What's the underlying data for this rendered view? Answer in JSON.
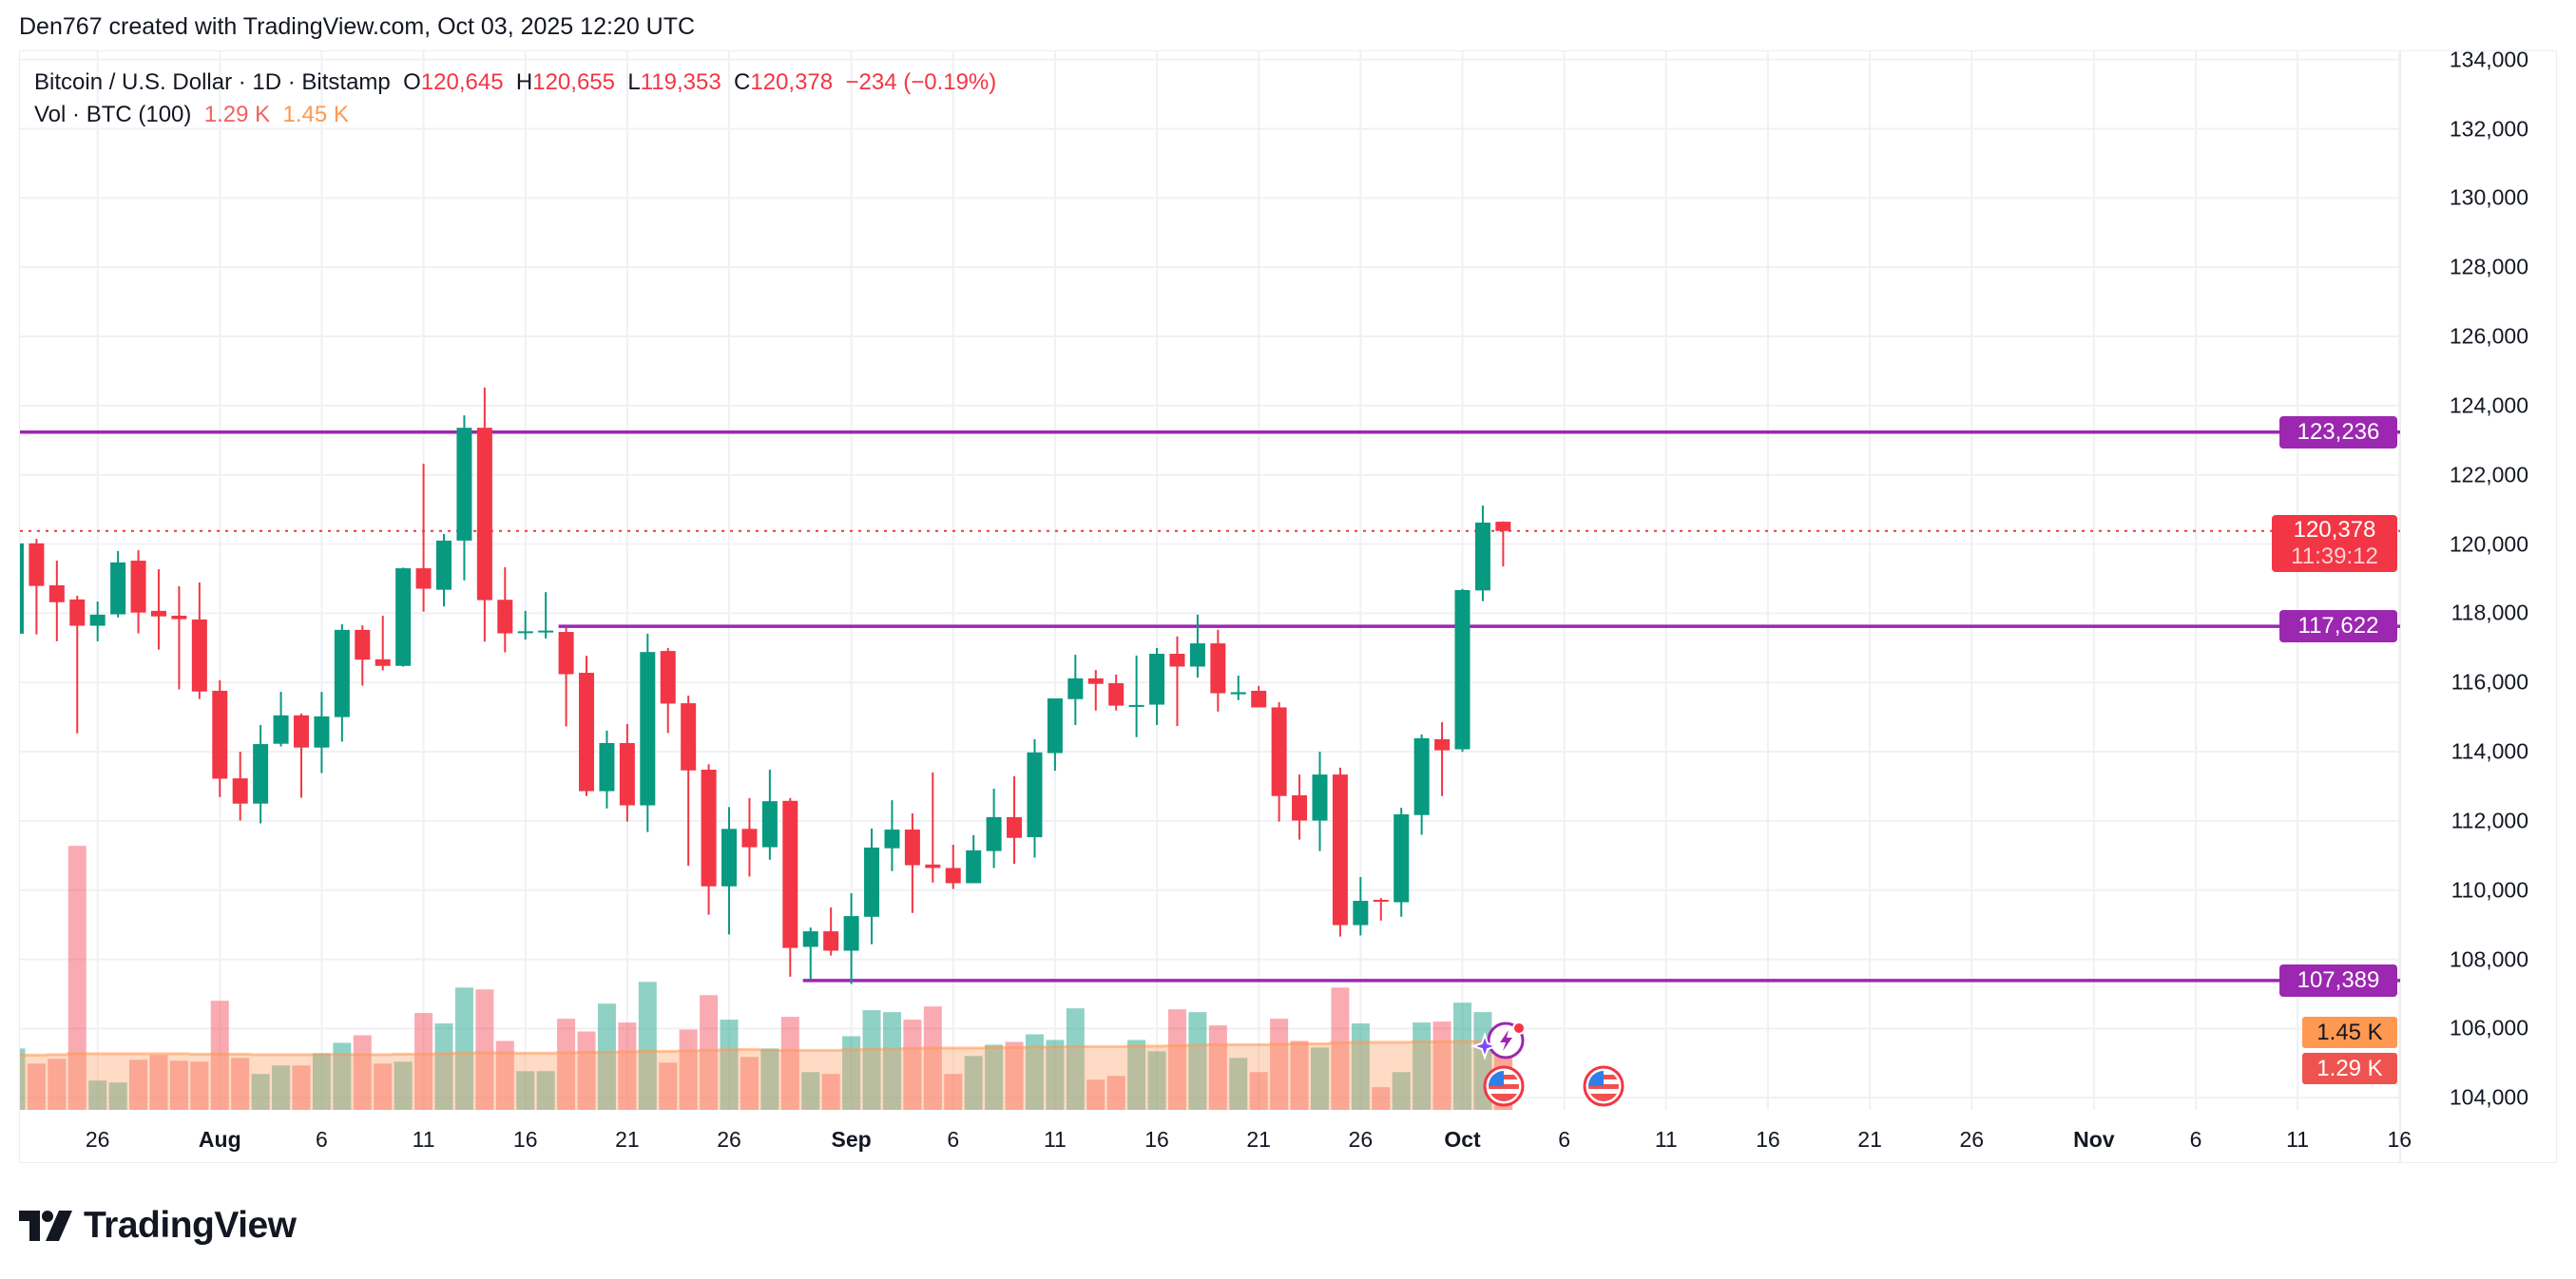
{
  "attribution": "Den767 created with TradingView.com, Oct 03, 2025 12:20 UTC",
  "legend": {
    "symbol": "Bitcoin / U.S. Dollar · 1D · Bitstamp",
    "o_label": "O",
    "o": "120,645",
    "h_label": "H",
    "h": "120,655",
    "l_label": "L",
    "l": "119,353",
    "c_label": "C",
    "c": "120,378",
    "change": "−234 (−0.19%)",
    "vol_label": "Vol · BTC (100)",
    "vol_value": "1.29 K",
    "vol_ma": "1.45 K"
  },
  "price_tags": {
    "resistance": "123,236",
    "current": "120,378",
    "countdown": "11:39:12",
    "support_mid": "117,622",
    "support_low": "107,389",
    "vol_ma": "1.45 K",
    "vol": "1.29 K"
  },
  "logo": {
    "text": "TradingView"
  },
  "colors": {
    "up": "#089981",
    "down": "#f23645",
    "levels": "#9c27b0",
    "vol_ma": "#ff9850"
  },
  "icons": [
    "lightning-event-icon",
    "us-flag-event-icon",
    "us-flag-event-icon"
  ],
  "chart_data": {
    "type": "candlestick",
    "symbol": "BTCUSD",
    "interval": "1D",
    "yaxis_ticks": [
      "134,000",
      "132,000",
      "130,000",
      "128,000",
      "126,000",
      "124,000",
      "122,000",
      "120,000",
      "118,000",
      "116,000",
      "114,000",
      "112,000",
      "110,000",
      "108,000",
      "106,000",
      "104,000"
    ],
    "ylim": [
      104000,
      134000
    ],
    "grid": true,
    "xaxis_ticks": [
      {
        "text": "26",
        "date": "2025-07-26",
        "bold": false
      },
      {
        "text": "Aug",
        "date": "2025-08-01",
        "bold": true
      },
      {
        "text": "6",
        "date": "2025-08-06",
        "bold": false
      },
      {
        "text": "11",
        "date": "2025-08-11",
        "bold": false
      },
      {
        "text": "16",
        "date": "2025-08-16",
        "bold": false
      },
      {
        "text": "21",
        "date": "2025-08-21",
        "bold": false
      },
      {
        "text": "26",
        "date": "2025-08-26",
        "bold": false
      },
      {
        "text": "Sep",
        "date": "2025-09-01",
        "bold": true
      },
      {
        "text": "6",
        "date": "2025-09-06",
        "bold": false
      },
      {
        "text": "11",
        "date": "2025-09-11",
        "bold": false
      },
      {
        "text": "16",
        "date": "2025-09-16",
        "bold": false
      },
      {
        "text": "21",
        "date": "2025-09-21",
        "bold": false
      },
      {
        "text": "26",
        "date": "2025-09-26",
        "bold": false
      },
      {
        "text": "Oct",
        "date": "2025-10-01",
        "bold": true
      },
      {
        "text": "6",
        "date": "2025-10-06",
        "bold": false
      },
      {
        "text": "11",
        "date": "2025-10-11",
        "bold": false
      },
      {
        "text": "16",
        "date": "2025-10-16",
        "bold": false
      },
      {
        "text": "21",
        "date": "2025-10-21",
        "bold": false
      },
      {
        "text": "26",
        "date": "2025-10-26",
        "bold": false
      },
      {
        "text": "Nov",
        "date": "2025-11-01",
        "bold": true
      },
      {
        "text": "6",
        "date": "2025-11-06",
        "bold": false
      },
      {
        "text": "11",
        "date": "2025-11-11",
        "bold": false
      },
      {
        "text": "16",
        "date": "2025-11-16",
        "bold": false
      }
    ],
    "horizontal_levels": [
      {
        "price": 123236,
        "from": "2025-07-22"
      },
      {
        "price": 117622,
        "from": "2025-08-18"
      },
      {
        "price": 107389,
        "from": "2025-08-30"
      }
    ],
    "last_price": 120378,
    "candles_fields": [
      "date",
      "open",
      "high",
      "low",
      "close",
      "volume_k",
      "vol_ma_k"
    ],
    "candles": [
      [
        "2025-07-22",
        117410,
        120100,
        117300,
        120020,
        1.3,
        1.16
      ],
      [
        "2025-07-23",
        120020,
        120150,
        117390,
        118790,
        0.98,
        1.16
      ],
      [
        "2025-07-24",
        118810,
        119520,
        117190,
        118320,
        1.08,
        1.17
      ],
      [
        "2025-07-25",
        118400,
        118510,
        114530,
        117640,
        5.59,
        1.19
      ],
      [
        "2025-07-26",
        117640,
        118340,
        117190,
        117960,
        0.62,
        1.19
      ],
      [
        "2025-07-27",
        117970,
        119800,
        117880,
        119470,
        0.58,
        1.19
      ],
      [
        "2025-07-28",
        119520,
        119820,
        117420,
        118020,
        1.06,
        1.19
      ],
      [
        "2025-07-29",
        118070,
        119270,
        116950,
        117910,
        1.16,
        1.19
      ],
      [
        "2025-07-30",
        117930,
        118780,
        115800,
        117830,
        1.04,
        1.19
      ],
      [
        "2025-07-31",
        117820,
        118890,
        115520,
        115740,
        1.02,
        1.18
      ],
      [
        "2025-08-01",
        115760,
        116060,
        112690,
        113220,
        2.31,
        1.18
      ],
      [
        "2025-08-02",
        113230,
        114000,
        112010,
        112500,
        1.1,
        1.18
      ],
      [
        "2025-08-03",
        112500,
        114770,
        111930,
        114220,
        0.76,
        1.17
      ],
      [
        "2025-08-04",
        114230,
        115730,
        114150,
        115050,
        0.94,
        1.17
      ],
      [
        "2025-08-05",
        115050,
        115100,
        112670,
        114120,
        0.94,
        1.17
      ],
      [
        "2025-08-06",
        114120,
        115730,
        113380,
        115020,
        1.2,
        1.17
      ],
      [
        "2025-08-07",
        115000,
        117680,
        114290,
        117520,
        1.42,
        1.17
      ],
      [
        "2025-08-08",
        117520,
        117650,
        115910,
        116660,
        1.58,
        1.17
      ],
      [
        "2025-08-09",
        116670,
        117930,
        116350,
        116480,
        0.98,
        1.17
      ],
      [
        "2025-08-10",
        116480,
        119320,
        116460,
        119300,
        1.02,
        1.18
      ],
      [
        "2025-08-11",
        119300,
        122320,
        118050,
        118710,
        2.05,
        1.18
      ],
      [
        "2025-08-12",
        118680,
        120290,
        118200,
        120100,
        1.83,
        1.19
      ],
      [
        "2025-08-13",
        120100,
        123720,
        118950,
        123360,
        2.59,
        1.2
      ],
      [
        "2025-08-14",
        123360,
        124520,
        117180,
        118380,
        2.55,
        1.21
      ],
      [
        "2025-08-15",
        118390,
        119330,
        116870,
        117420,
        1.46,
        1.21
      ],
      [
        "2025-08-16",
        117460,
        118070,
        117240,
        117480,
        0.82,
        1.2
      ],
      [
        "2025-08-17",
        117480,
        118610,
        117270,
        117500,
        0.82,
        1.2
      ],
      [
        "2025-08-18",
        117460,
        117600,
        114730,
        116240,
        1.93,
        1.21
      ],
      [
        "2025-08-19",
        116280,
        116770,
        112720,
        112860,
        1.66,
        1.22
      ],
      [
        "2025-08-20",
        112860,
        114610,
        112360,
        114250,
        2.25,
        1.22
      ],
      [
        "2025-08-21",
        114250,
        114800,
        111980,
        112450,
        1.85,
        1.23
      ],
      [
        "2025-08-22",
        112450,
        117410,
        111680,
        116880,
        2.71,
        1.24
      ],
      [
        "2025-08-23",
        116910,
        117000,
        114540,
        115390,
        1.0,
        1.24
      ],
      [
        "2025-08-24",
        115400,
        115620,
        110700,
        113460,
        1.7,
        1.25
      ],
      [
        "2025-08-25",
        113480,
        113640,
        109290,
        110110,
        2.43,
        1.26
      ],
      [
        "2025-08-26",
        110110,
        112400,
        108720,
        111770,
        1.91,
        1.27
      ],
      [
        "2025-08-27",
        111770,
        112660,
        110390,
        111240,
        1.12,
        1.28
      ],
      [
        "2025-08-28",
        111240,
        113480,
        110880,
        112570,
        1.3,
        1.26
      ],
      [
        "2025-08-29",
        112580,
        112660,
        107500,
        108330,
        1.97,
        1.26
      ],
      [
        "2025-08-30",
        108360,
        108920,
        107410,
        108810,
        0.8,
        1.26
      ],
      [
        "2025-08-31",
        108810,
        109500,
        108110,
        108250,
        0.76,
        1.26
      ],
      [
        "2025-09-01",
        108250,
        109910,
        107290,
        109250,
        1.56,
        1.27
      ],
      [
        "2025-09-02",
        109230,
        111780,
        108440,
        111230,
        2.11,
        1.28
      ],
      [
        "2025-09-03",
        111210,
        112600,
        110550,
        111750,
        2.07,
        1.29
      ],
      [
        "2025-09-04",
        111750,
        112220,
        109340,
        110720,
        1.91,
        1.3
      ],
      [
        "2025-09-05",
        110740,
        113400,
        110220,
        110640,
        2.19,
        1.31
      ],
      [
        "2025-09-06",
        110640,
        111310,
        110030,
        110200,
        0.76,
        1.31
      ],
      [
        "2025-09-07",
        110200,
        111590,
        110200,
        111150,
        1.14,
        1.31
      ],
      [
        "2025-09-08",
        111130,
        112930,
        110640,
        112110,
        1.38,
        1.32
      ],
      [
        "2025-09-09",
        112110,
        113290,
        110760,
        111510,
        1.44,
        1.32
      ],
      [
        "2025-09-10",
        111530,
        114360,
        110940,
        113980,
        1.6,
        1.33
      ],
      [
        "2025-09-11",
        113960,
        115540,
        113450,
        115540,
        1.48,
        1.33
      ],
      [
        "2025-09-12",
        115520,
        116800,
        114770,
        116120,
        2.15,
        1.34
      ],
      [
        "2025-09-13",
        116120,
        116360,
        115190,
        115960,
        0.64,
        1.34
      ],
      [
        "2025-09-14",
        115980,
        116230,
        115190,
        115330,
        0.72,
        1.34
      ],
      [
        "2025-09-15",
        115330,
        116780,
        114420,
        115350,
        1.48,
        1.35
      ],
      [
        "2025-09-16",
        115360,
        117000,
        114770,
        116830,
        1.24,
        1.35
      ],
      [
        "2025-09-17",
        116830,
        117330,
        114740,
        116460,
        2.13,
        1.36
      ],
      [
        "2025-09-18",
        116460,
        117960,
        116140,
        117130,
        2.07,
        1.37
      ],
      [
        "2025-09-19",
        117130,
        117520,
        115160,
        115690,
        1.79,
        1.38
      ],
      [
        "2025-09-20",
        115660,
        116200,
        115490,
        115720,
        1.1,
        1.38
      ],
      [
        "2025-09-21",
        115760,
        115900,
        115280,
        115280,
        0.8,
        1.38
      ],
      [
        "2025-09-22",
        115280,
        115430,
        111980,
        112720,
        1.93,
        1.39
      ],
      [
        "2025-09-23",
        112740,
        113340,
        111460,
        112010,
        1.46,
        1.4
      ],
      [
        "2025-09-24",
        112010,
        114000,
        111130,
        113340,
        1.32,
        1.4
      ],
      [
        "2025-09-25",
        113340,
        113540,
        108660,
        108990,
        2.59,
        1.42
      ],
      [
        "2025-09-26",
        108990,
        110380,
        108690,
        109690,
        1.83,
        1.43
      ],
      [
        "2025-09-27",
        109720,
        109770,
        109120,
        109670,
        0.48,
        1.43
      ],
      [
        "2025-09-28",
        109650,
        112380,
        109230,
        112190,
        0.8,
        1.43
      ],
      [
        "2025-09-29",
        112170,
        114500,
        111600,
        114390,
        1.85,
        1.44
      ],
      [
        "2025-09-30",
        114360,
        114850,
        112720,
        114040,
        1.87,
        1.44
      ],
      [
        "2025-10-01",
        114070,
        118700,
        114000,
        118670,
        2.27,
        1.45
      ],
      [
        "2025-10-02",
        118660,
        121110,
        118350,
        120620,
        2.07,
        1.45
      ],
      [
        "2025-10-03",
        120645,
        120655,
        119353,
        120378,
        1.29,
        1.45
      ]
    ]
  }
}
